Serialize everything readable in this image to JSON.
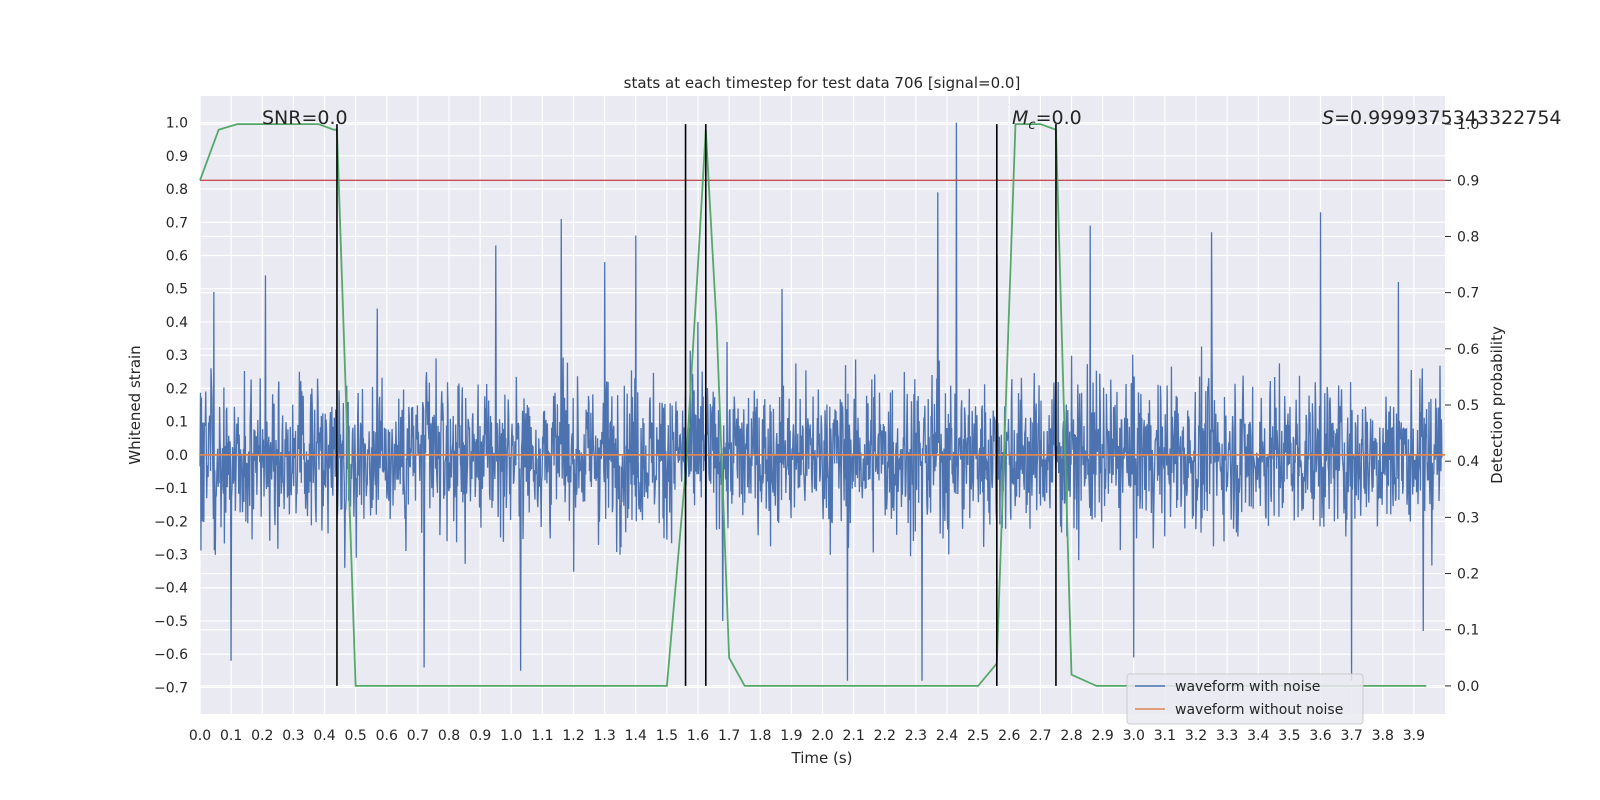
{
  "chart_data": {
    "type": "line",
    "title": "stats at each timestep for test data 706 [signal=0.0]",
    "xlabel": "Time (s)",
    "ylabel_left": "Whitened strain",
    "ylabel_right": "Detection probability",
    "xlim": [
      0.0,
      4.0
    ],
    "ylim_left": [
      -0.78,
      1.08
    ],
    "ylim_right": [
      -0.05,
      1.05
    ],
    "x_ticks": [
      "0.0",
      "0.1",
      "0.2",
      "0.3",
      "0.4",
      "0.5",
      "0.6",
      "0.7",
      "0.8",
      "0.9",
      "1.0",
      "1.1",
      "1.2",
      "1.3",
      "1.4",
      "1.5",
      "1.6",
      "1.7",
      "1.8",
      "1.9",
      "2.0",
      "2.1",
      "2.2",
      "2.3",
      "2.4",
      "2.5",
      "2.6",
      "2.7",
      "2.8",
      "2.9",
      "3.0",
      "3.1",
      "3.2",
      "3.3",
      "3.4",
      "3.5",
      "3.6",
      "3.7",
      "3.8",
      "3.9"
    ],
    "y_left_ticks": [
      "−0.7",
      "−0.6",
      "−0.5",
      "−0.4",
      "−0.3",
      "−0.2",
      "−0.1",
      "0.0",
      "0.1",
      "0.2",
      "0.3",
      "0.4",
      "0.5",
      "0.6",
      "0.7",
      "0.8",
      "0.9",
      "1.0"
    ],
    "y_right_ticks": [
      "0.0",
      "0.1",
      "0.2",
      "0.3",
      "0.4",
      "0.5",
      "0.6",
      "0.7",
      "0.8",
      "0.9",
      "1.0"
    ],
    "grid": true,
    "background_color": "#eaeaf2",
    "annotations": {
      "snr": "SNR=0.0",
      "mc_symbol": "M",
      "mc_sub": "c",
      "mc_value": "=0.0",
      "s_symbol": "S",
      "s_value": "=0.9999375343322754"
    },
    "legend": {
      "placement": "lower right",
      "entries": [
        {
          "label": "waveform with noise",
          "color": "#4c72b0"
        },
        {
          "label": "waveform without noise",
          "color": "#dd8452"
        }
      ]
    },
    "noisy_waveform": {
      "name": "waveform with noise",
      "color": "#4c72b0",
      "typical_range": [
        -0.35,
        0.32
      ],
      "peaks": [
        [
          0.045,
          0.49
        ],
        [
          0.1,
          -0.62
        ],
        [
          0.21,
          0.54
        ],
        [
          0.36,
          0.2
        ],
        [
          0.57,
          0.44
        ],
        [
          0.72,
          -0.64
        ],
        [
          0.95,
          0.63
        ],
        [
          1.03,
          -0.65
        ],
        [
          1.16,
          0.71
        ],
        [
          1.3,
          0.58
        ],
        [
          1.4,
          0.66
        ],
        [
          1.6,
          0.4
        ],
        [
          1.68,
          -0.5
        ],
        [
          1.87,
          0.5
        ],
        [
          2.08,
          -0.68
        ],
        [
          2.32,
          -0.68
        ],
        [
          2.37,
          0.79
        ],
        [
          2.43,
          1.0
        ],
        [
          2.56,
          0.6
        ],
        [
          2.86,
          0.69
        ],
        [
          3.0,
          -0.61
        ],
        [
          3.25,
          0.67
        ],
        [
          3.6,
          0.73
        ],
        [
          3.7,
          -0.68
        ],
        [
          3.85,
          0.52
        ],
        [
          3.93,
          -0.53
        ]
      ]
    },
    "clean_waveform": {
      "name": "waveform without noise",
      "color": "#dd8452",
      "value": 0.0
    },
    "detection_probability": {
      "color": "#55a868",
      "x": [
        0.0,
        0.06,
        0.12,
        0.2,
        0.3,
        0.38,
        0.43,
        0.44,
        0.5,
        0.56,
        1.0,
        1.5,
        1.56,
        1.6,
        1.625,
        1.66,
        1.7,
        1.75,
        2.1,
        2.5,
        2.56,
        2.62,
        2.7,
        2.75,
        2.8,
        2.88,
        3.5,
        3.94
      ],
      "y": [
        0.9,
        0.99,
        1.0,
        1.0,
        1.0,
        1.0,
        0.99,
        0.99,
        0.0,
        0.0,
        0.0,
        0.0,
        0.38,
        0.75,
        0.99,
        0.64,
        0.05,
        0.0,
        0.0,
        0.0,
        0.04,
        1.0,
        1.0,
        0.99,
        0.02,
        0.0,
        0.0,
        0.0
      ]
    },
    "threshold": {
      "color": "#c44e52",
      "value": 0.9
    },
    "vertical_markers": {
      "color": "#000000",
      "x": [
        0.44,
        1.56,
        1.625,
        2.56,
        2.75
      ]
    }
  }
}
